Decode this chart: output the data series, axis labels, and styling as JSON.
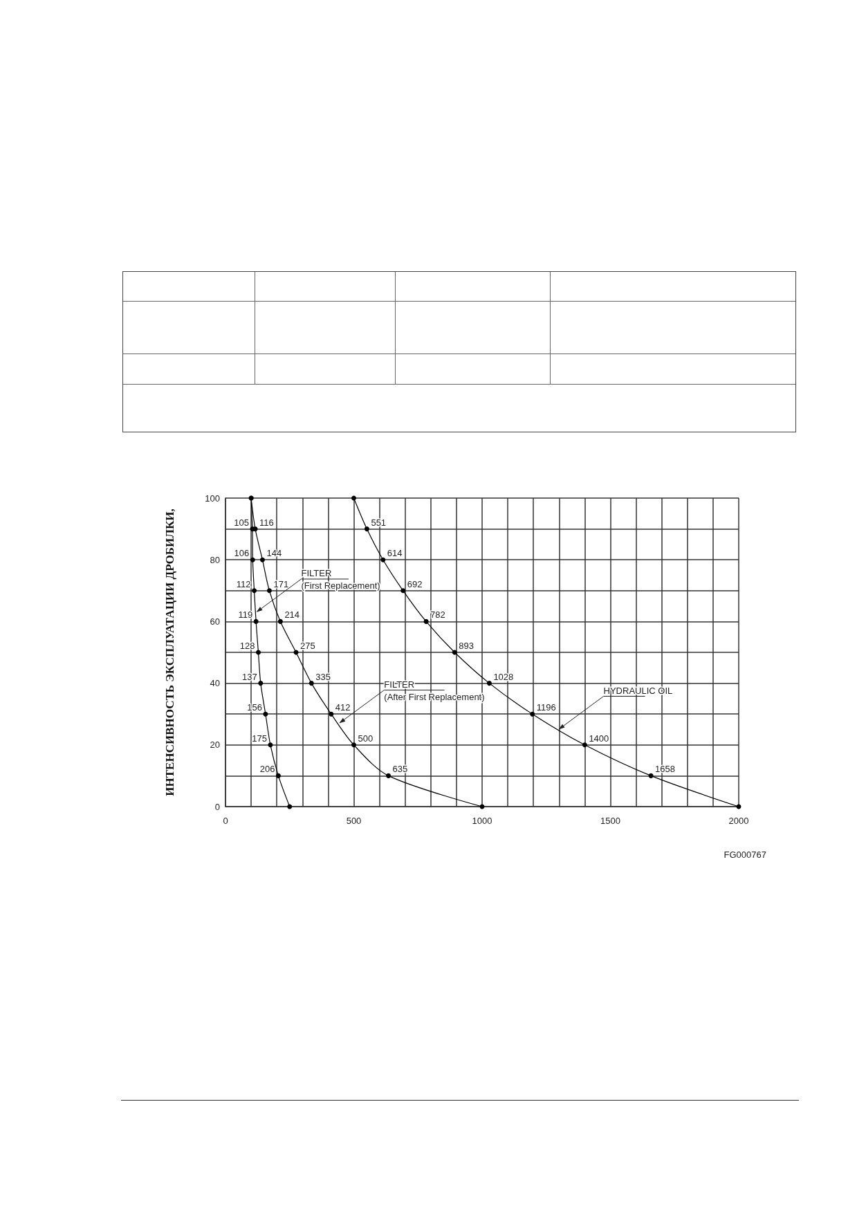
{
  "chart_data": {
    "type": "line",
    "ylabel": "ИНТЕНСИВНОСТЬ ЭКСПЛУАТАЦИИ ДРОБИЛКИ,",
    "series": [
      {
        "color": "#000000",
        "x": [
          100,
          105,
          106,
          112,
          119,
          128,
          137,
          156,
          175,
          206,
          250
        ],
        "values": [
          100,
          90,
          80,
          70,
          60,
          50,
          40,
          30,
          20,
          10,
          0
        ]
      },
      {
        "color": "#000000",
        "x": [
          100,
          116,
          144,
          171,
          214,
          275,
          335,
          412,
          500,
          635,
          1000
        ],
        "values": [
          100,
          90,
          80,
          70,
          60,
          50,
          40,
          30,
          20,
          10,
          0
        ]
      },
      {
        "color": "#000000",
        "x": [
          500,
          551,
          614,
          692,
          782,
          893,
          1028,
          1196,
          1400,
          1658,
          2000
        ],
        "values": [
          100,
          90,
          80,
          70,
          60,
          50,
          40,
          30,
          20,
          10,
          0
        ]
      }
    ],
    "xlim": [
      0,
      2000
    ],
    "xticks": [
      0,
      {
        "value": 100,
        "label": null
      },
      {
        "value": 200,
        "label": null
      },
      {
        "value": 300,
        "label": null
      },
      {
        "value": 400,
        "label": null
      },
      500,
      {
        "value": 600,
        "label": null
      },
      {
        "value": 700,
        "label": null
      },
      {
        "value": 800,
        "label": null
      },
      {
        "value": 900,
        "label": null
      },
      1000,
      {
        "value": 1100,
        "label": null
      },
      {
        "value": 1200,
        "label": null
      },
      {
        "value": 1300,
        "label": null
      },
      {
        "value": 1400,
        "label": null
      },
      1500,
      {
        "value": 1600,
        "label": null
      },
      {
        "value": 1700,
        "label": null
      },
      {
        "value": 1800,
        "label": null
      },
      {
        "value": 1900,
        "label": null
      },
      2000
    ],
    "ylim": [
      0,
      100
    ],
    "yticks": [
      0,
      {
        "value": 10,
        "label": null
      },
      20,
      {
        "value": 30,
        "label": null
      },
      40,
      {
        "value": 50,
        "label": null
      },
      60,
      {
        "value": 70,
        "label": null
      },
      80,
      {
        "value": 90,
        "label": null
      },
      100
    ],
    "grid": true,
    "marker": "circle",
    "line_style": "solid",
    "annotations": [
      {
        "text": "105",
        "x": 105,
        "y": 90
      },
      {
        "text": "106",
        "x": 106,
        "y": 80
      },
      {
        "text": "112",
        "x": 112,
        "y": 70
      },
      {
        "text": "119",
        "x": 119,
        "y": 60
      },
      {
        "text": "128",
        "x": 128,
        "y": 50
      },
      {
        "text": "137",
        "x": 137,
        "y": 40
      },
      {
        "text": "156",
        "x": 156,
        "y": 30
      },
      {
        "text": "175",
        "x": 175,
        "y": 20
      },
      {
        "text": "206",
        "x": 206,
        "y": 10
      },
      {
        "text": "116",
        "x": 116,
        "y": 90
      },
      {
        "text": "144",
        "x": 144,
        "y": 80
      },
      {
        "text": "171",
        "x": 171,
        "y": 70
      },
      {
        "text": "214",
        "x": 214,
        "y": 60
      },
      {
        "text": "275",
        "x": 275,
        "y": 50
      },
      {
        "text": "335",
        "x": 335,
        "y": 40
      },
      {
        "text": "412",
        "x": 412,
        "y": 30
      },
      {
        "text": "500",
        "x": 500,
        "y": 20
      },
      {
        "text": "635",
        "x": 635,
        "y": 10
      },
      {
        "text": "551",
        "x": 551,
        "y": 90
      },
      {
        "text": "614",
        "x": 614,
        "y": 80
      },
      {
        "text": "692",
        "x": 692,
        "y": 70
      },
      {
        "text": "782",
        "x": 782,
        "y": 60
      },
      {
        "text": "893",
        "x": 893,
        "y": 50
      },
      {
        "text": "1028",
        "x": 1028,
        "y": 40
      },
      {
        "text": "1196",
        "x": 1196,
        "y": 30
      },
      {
        "text": "1400",
        "x": 1400,
        "y": 20
      },
      {
        "text": "1658",
        "x": 1658,
        "y": 10
      },
      {
        "text": "FILTER\n(First Replacement)",
        "x": 120,
        "y": 63
      },
      {
        "text": "FILTER\n(After First Replacement)",
        "x": 443,
        "y": 27
      },
      {
        "text": "HYDRAULIC OIL",
        "x": 1298,
        "y": 25
      },
      "FG000767"
    ]
  }
}
